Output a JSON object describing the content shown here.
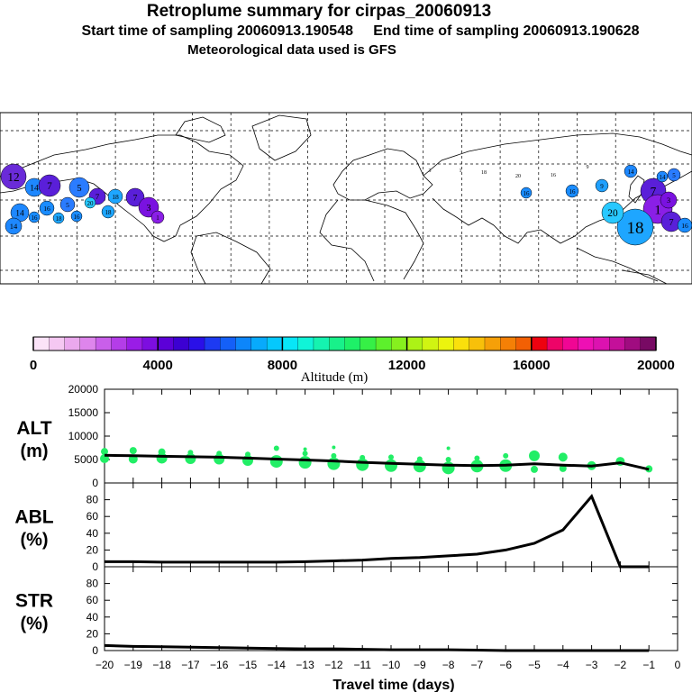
{
  "header": {
    "title": "Retroplume summary for cirpas_20060913",
    "subtitle": "Start time of sampling 20060913.190548     End time of sampling 20060913.190628",
    "met": "Meteorological data used is GFS"
  },
  "map": {
    "clusters": [
      {
        "label": "12",
        "color": "#6a2bd8"
      },
      {
        "label": "14",
        "color": "#1e88ff"
      },
      {
        "label": "5",
        "color": "#2a7cff"
      },
      {
        "label": "7",
        "color": "#5a1fd9"
      },
      {
        "label": "3",
        "color": "#7a12e0"
      },
      {
        "label": "1",
        "color": "#8a1fe6"
      },
      {
        "label": "18",
        "color": "#1ea6ff"
      },
      {
        "label": "20",
        "color": "#28c8ff"
      },
      {
        "label": "16",
        "color": "#1a8cff"
      },
      {
        "label": "9",
        "color": "#1fa0ff"
      }
    ]
  },
  "colorbar": {
    "axis_label": "Altitude (m)",
    "tick_labels": [
      "0",
      "4000",
      "8000",
      "12000",
      "16000",
      "20000"
    ],
    "colors": [
      "#fbe3f8",
      "#f5c8f2",
      "#eba9ee",
      "#de85ec",
      "#c95fea",
      "#b43de8",
      "#9a1de6",
      "#7d0ee0",
      "#5c00d8",
      "#3c00d2",
      "#2a10e8",
      "#1d3af2",
      "#1460f8",
      "#0d86fa",
      "#08aafc",
      "#05c8fd",
      "#08e6f7",
      "#10f4d8",
      "#15f3b0",
      "#18f18a",
      "#1ef068",
      "#36f046",
      "#5df02c",
      "#86f01e",
      "#acf216",
      "#d0f412",
      "#ecf40e",
      "#fae00c",
      "#f8c00a",
      "#f6a008",
      "#f48006",
      "#f26004",
      "#ee0210",
      "#ee0468",
      "#f00694",
      "#ee10b4",
      "#dc12b0",
      "#c4109a",
      "#a00c80",
      "#780a64"
    ]
  },
  "chart_data": [
    {
      "type": "line",
      "id": "alt",
      "panel_label": [
        "ALT",
        "(m)"
      ],
      "ylim": [
        0,
        20000
      ],
      "yticks": [
        0,
        5000,
        10000,
        15000,
        20000
      ],
      "x": [
        -20,
        -19,
        -18,
        -17,
        -16,
        -15,
        -14,
        -13,
        -12,
        -11,
        -10,
        -9,
        -8,
        -7,
        -6,
        -5,
        -4,
        -3,
        -2,
        -1
      ],
      "values": [
        5900,
        5800,
        5700,
        5600,
        5500,
        5300,
        5100,
        4900,
        4700,
        4400,
        4200,
        4000,
        3800,
        3700,
        3800,
        4100,
        3800,
        3600,
        4300,
        2900
      ],
      "dots": [
        {
          "x": -20,
          "y": 5200,
          "r": 5
        },
        {
          "x": -20,
          "y": 6700,
          "r": 4
        },
        {
          "x": -19,
          "y": 5100,
          "r": 5
        },
        {
          "x": -19,
          "y": 6900,
          "r": 4
        },
        {
          "x": -18,
          "y": 5300,
          "r": 6
        },
        {
          "x": -18,
          "y": 6600,
          "r": 4
        },
        {
          "x": -17,
          "y": 5200,
          "r": 6
        },
        {
          "x": -17,
          "y": 6500,
          "r": 3
        },
        {
          "x": -16,
          "y": 5100,
          "r": 6
        },
        {
          "x": -16,
          "y": 6300,
          "r": 3
        },
        {
          "x": -15,
          "y": 4800,
          "r": 6
        },
        {
          "x": -15,
          "y": 6100,
          "r": 3
        },
        {
          "x": -14,
          "y": 4600,
          "r": 7
        },
        {
          "x": -14,
          "y": 7400,
          "r": 3
        },
        {
          "x": -13,
          "y": 4400,
          "r": 7
        },
        {
          "x": -13,
          "y": 6300,
          "r": 3
        },
        {
          "x": -13,
          "y": 7200,
          "r": 2
        },
        {
          "x": -12,
          "y": 4100,
          "r": 7
        },
        {
          "x": -12,
          "y": 5800,
          "r": 3
        },
        {
          "x": -12,
          "y": 7600,
          "r": 2
        },
        {
          "x": -11,
          "y": 3900,
          "r": 7
        },
        {
          "x": -11,
          "y": 5400,
          "r": 3
        },
        {
          "x": -10,
          "y": 3700,
          "r": 7
        },
        {
          "x": -10,
          "y": 5500,
          "r": 3
        },
        {
          "x": -9,
          "y": 3600,
          "r": 7
        },
        {
          "x": -9,
          "y": 5100,
          "r": 3
        },
        {
          "x": -8,
          "y": 3200,
          "r": 7
        },
        {
          "x": -8,
          "y": 5000,
          "r": 3
        },
        {
          "x": -8,
          "y": 7400,
          "r": 2
        },
        {
          "x": -7,
          "y": 3600,
          "r": 7
        },
        {
          "x": -7,
          "y": 5300,
          "r": 3
        },
        {
          "x": -6,
          "y": 3700,
          "r": 7
        },
        {
          "x": -6,
          "y": 5800,
          "r": 3
        },
        {
          "x": -5,
          "y": 5800,
          "r": 6
        },
        {
          "x": -5,
          "y": 2900,
          "r": 4
        },
        {
          "x": -4,
          "y": 5500,
          "r": 5
        },
        {
          "x": -4,
          "y": 3100,
          "r": 4
        },
        {
          "x": -3,
          "y": 3700,
          "r": 5
        },
        {
          "x": -2,
          "y": 4600,
          "r": 5
        },
        {
          "x": -1,
          "y": 3000,
          "r": 4
        }
      ]
    },
    {
      "type": "line",
      "id": "abl",
      "panel_label": [
        "ABL",
        "(%)"
      ],
      "ylim": [
        0,
        100
      ],
      "yticks": [
        0,
        20,
        40,
        60,
        80
      ],
      "x": [
        -20,
        -19,
        -18,
        -17,
        -16,
        -15,
        -14,
        -13,
        -12,
        -11,
        -10,
        -9,
        -8,
        -7,
        -6,
        -5,
        -4,
        -3,
        -2,
        -1
      ],
      "values": [
        6,
        6,
        5.5,
        5.5,
        5.5,
        5.5,
        5.5,
        6,
        7,
        8,
        10,
        11,
        13,
        15,
        20,
        28,
        44,
        84,
        0,
        0
      ]
    },
    {
      "type": "line",
      "id": "str",
      "panel_label": [
        "STR",
        "(%)"
      ],
      "ylim": [
        0,
        100
      ],
      "yticks": [
        0,
        20,
        40,
        60,
        80
      ],
      "x": [
        -20,
        -19,
        -18,
        -17,
        -16,
        -15,
        -14,
        -13,
        -12,
        -11,
        -10,
        -9,
        -8,
        -7,
        -6,
        -5,
        -4,
        -3,
        -2,
        -1
      ],
      "values": [
        6,
        5,
        4.5,
        4,
        3.5,
        3,
        2.5,
        2,
        2,
        1.5,
        1,
        1,
        1,
        0.5,
        0,
        0,
        0,
        0,
        0,
        0
      ],
      "xlabel": "Travel time (days)",
      "xticks": [
        -20,
        -19,
        -18,
        -17,
        -16,
        -15,
        -14,
        -13,
        -12,
        -11,
        -10,
        -9,
        -8,
        -7,
        -6,
        -5,
        -4,
        -3,
        -2,
        -1,
        0
      ],
      "xtick_labels": [
        "−20",
        "−19",
        "−18",
        "−17",
        "−16",
        "−15",
        "−14",
        "−13",
        "−12",
        "−11",
        "−10",
        "−9",
        "−8",
        "−7",
        "−6",
        "−5",
        "−4",
        "−3",
        "−2",
        "−1",
        "0"
      ]
    }
  ]
}
